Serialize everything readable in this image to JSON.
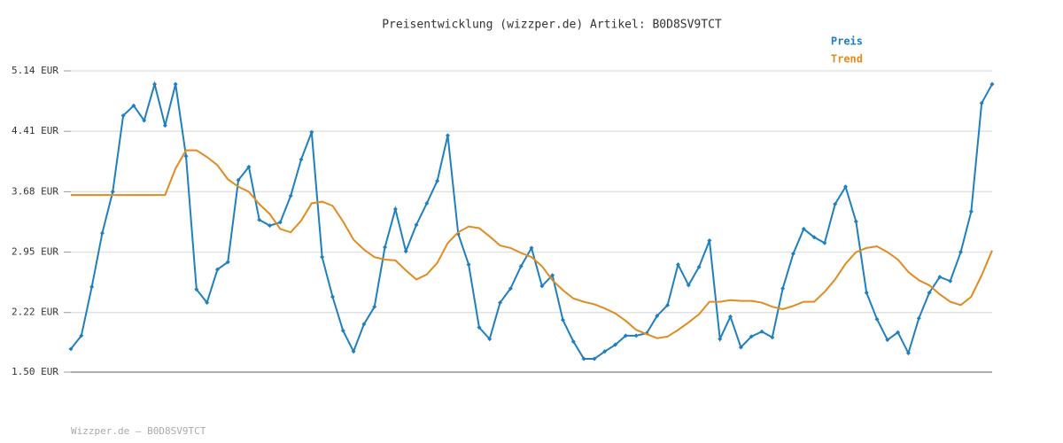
{
  "chart_data": {
    "type": "line",
    "title": "Preisentwicklung (wizzper.de) Artikel: B0D8SV9TCT",
    "footer": "Wizzper.de – B0D8SV9TCT",
    "ylim": [
      1.5,
      5.14
    ],
    "yticks": [
      {
        "value": 1.5,
        "label": "1.50 EUR"
      },
      {
        "value": 2.22,
        "label": "2.22 EUR"
      },
      {
        "value": 2.95,
        "label": "2.95 EUR"
      },
      {
        "value": 3.68,
        "label": "3.68 EUR"
      },
      {
        "value": 4.41,
        "label": "4.41 EUR"
      },
      {
        "value": 5.14,
        "label": "5.14 EUR"
      }
    ],
    "grid": true,
    "legend": "top-right",
    "series": [
      {
        "name": "Preis",
        "color": "#1f7fbf",
        "markers": true,
        "values": [
          1.78,
          1.94,
          2.53,
          3.18,
          3.68,
          4.6,
          4.72,
          4.54,
          4.98,
          4.48,
          4.98,
          4.11,
          2.5,
          2.34,
          2.74,
          2.83,
          3.82,
          3.98,
          3.34,
          3.27,
          3.31,
          3.63,
          4.07,
          4.4,
          2.89,
          2.41,
          2.0,
          1.75,
          2.08,
          2.29,
          3.01,
          3.47,
          2.96,
          3.28,
          3.54,
          3.81,
          4.36,
          3.17,
          2.8,
          2.04,
          1.9,
          2.34,
          2.51,
          2.78,
          3.0,
          2.54,
          2.67,
          2.13,
          1.87,
          1.66,
          1.66,
          1.75,
          1.83,
          1.94,
          1.94,
          1.97,
          2.18,
          2.31,
          2.8,
          2.55,
          2.77,
          3.09,
          1.9,
          2.17,
          1.8,
          1.93,
          1.99,
          1.92,
          2.51,
          2.93,
          3.23,
          3.13,
          3.06,
          3.53,
          3.74,
          3.32,
          2.46,
          2.14,
          1.89,
          1.98,
          1.73,
          2.15,
          2.46,
          2.65,
          2.6,
          2.95,
          3.44,
          4.75,
          4.98
        ]
      },
      {
        "name": "Trend",
        "color": "#e08c20",
        "markers": false,
        "values": [
          3.64,
          3.64,
          3.64,
          3.64,
          3.64,
          3.64,
          3.64,
          3.64,
          3.64,
          3.64,
          3.96,
          4.18,
          4.18,
          4.1,
          4.0,
          3.83,
          3.74,
          3.68,
          3.53,
          3.41,
          3.23,
          3.19,
          3.33,
          3.54,
          3.56,
          3.51,
          3.32,
          3.1,
          2.98,
          2.89,
          2.86,
          2.85,
          2.73,
          2.62,
          2.68,
          2.82,
          3.06,
          3.19,
          3.26,
          3.24,
          3.14,
          3.03,
          3.0,
          2.94,
          2.89,
          2.78,
          2.61,
          2.49,
          2.39,
          2.35,
          2.32,
          2.27,
          2.21,
          2.12,
          2.01,
          1.96,
          1.91,
          1.93,
          2.01,
          2.1,
          2.2,
          2.35,
          2.35,
          2.37,
          2.36,
          2.36,
          2.34,
          2.29,
          2.26,
          2.3,
          2.35,
          2.35,
          2.47,
          2.62,
          2.81,
          2.95,
          3.0,
          3.02,
          2.95,
          2.86,
          2.71,
          2.61,
          2.55,
          2.44,
          2.35,
          2.31,
          2.41,
          2.67,
          2.97
        ]
      }
    ]
  }
}
